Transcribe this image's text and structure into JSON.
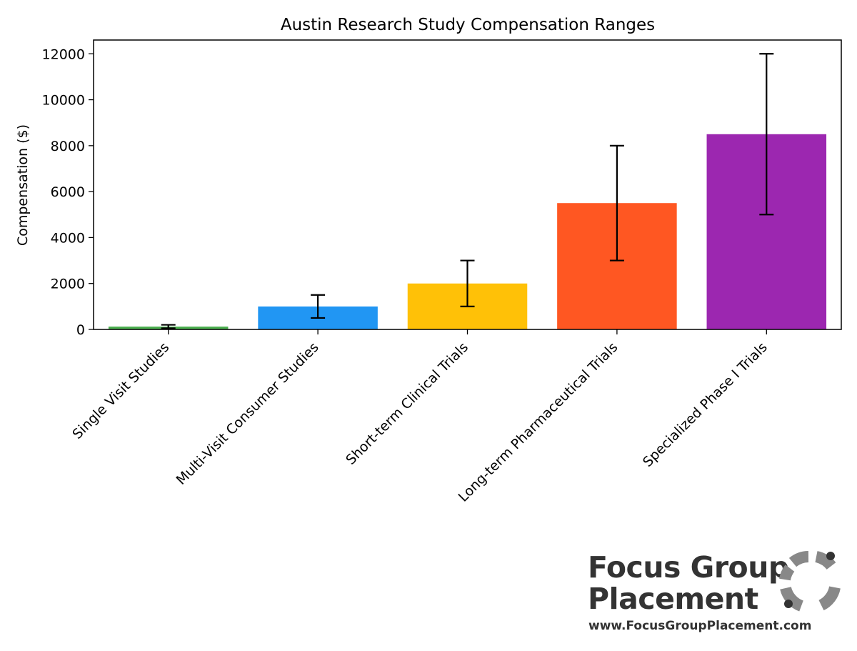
{
  "chart_data": {
    "type": "bar",
    "title": "Austin Research Study Compensation Ranges",
    "xlabel": "",
    "ylabel": "Compensation ($)",
    "ylim": [
      0,
      12600
    ],
    "yticks": [
      0,
      2000,
      4000,
      6000,
      8000,
      10000,
      12000
    ],
    "categories": [
      "Single Visit Studies",
      "Multi-Visit Consumer Studies",
      "Short-term Clinical Trials",
      "Long-term Pharmaceutical Trials",
      "Specialized Phase I Trials"
    ],
    "values": [
      125,
      1000,
      2000,
      5500,
      8500
    ],
    "error_low": [
      50,
      500,
      1000,
      3000,
      5000
    ],
    "error_high": [
      200,
      1500,
      3000,
      8000,
      12000
    ],
    "colors": [
      "#4caf50",
      "#2196f3",
      "#ffc107",
      "#ff5722",
      "#9c27b0"
    ],
    "grid": false
  },
  "branding": {
    "name_line1": "Focus Group",
    "name_line2": "Placement",
    "url": "www.FocusGroupPlacement.com",
    "logo_icon": "ring-logo-icon",
    "text_color": "#333333",
    "logo_color": "#888888"
  }
}
